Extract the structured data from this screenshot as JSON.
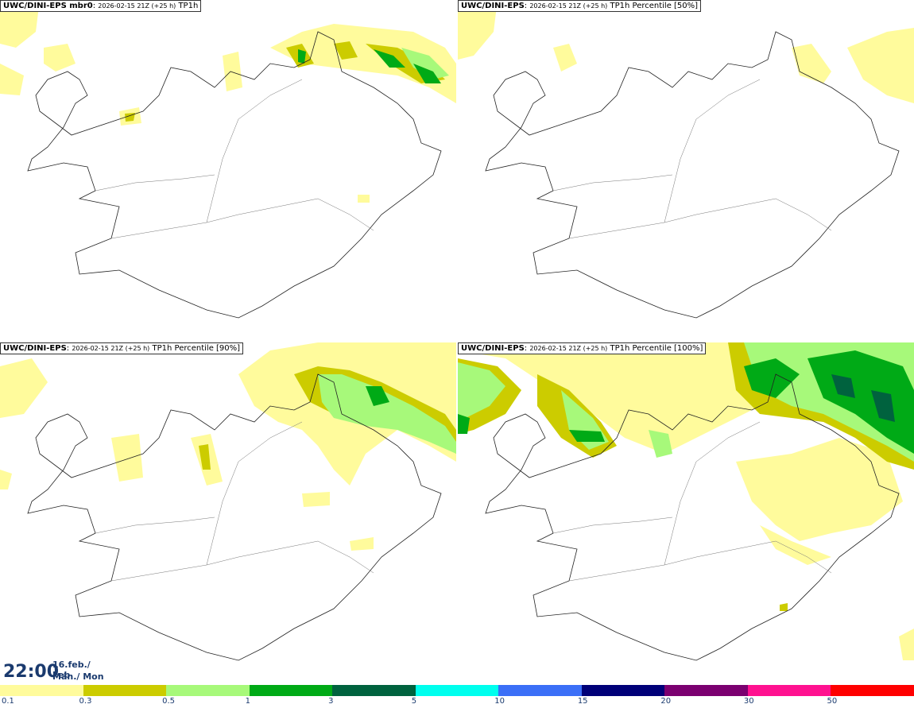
{
  "panels": [
    {
      "source": "UWC/DINI-EPS",
      "member": " mbr0",
      "run": "2026-02-15 21Z (+25 h)",
      "product": "TP1h"
    },
    {
      "source": "UWC/DINI-EPS",
      "member": "",
      "run": "2026-02-15 21Z (+25 h)",
      "product": "TP1h Percentile [50%]"
    },
    {
      "source": "UWC/DINI-EPS",
      "member": "",
      "run": "2026-02-15 21Z (+25 h)",
      "product": "TP1h Percentile [90%]"
    },
    {
      "source": "UWC/DINI-EPS",
      "member": "",
      "run": "2026-02-15 21Z (+25 h)",
      "product": "TP1h Percentile [100%]"
    }
  ],
  "valid_time": {
    "time": "22:00",
    "date_line": "16.feb./ Feb",
    "day_line": "Mán./ Mon"
  },
  "legend": {
    "labels": [
      "0.1",
      "0.3",
      "0.5",
      "1",
      "3",
      "5",
      "10",
      "15",
      "20",
      "30",
      "50"
    ],
    "colors": [
      "#fffb9c",
      "#cccc00",
      "#a7f97a",
      "#00aa16",
      "#00623e",
      "#00ffee",
      "#3b6ff7",
      "#000078",
      "#7b0070",
      "#ff1190",
      "#ff0000"
    ]
  },
  "colors": {
    "light_yellow": "#fffb9c",
    "olive": "#cccc00",
    "light_green": "#a7f97a",
    "green": "#00aa16",
    "dark_green": "#00623e"
  }
}
